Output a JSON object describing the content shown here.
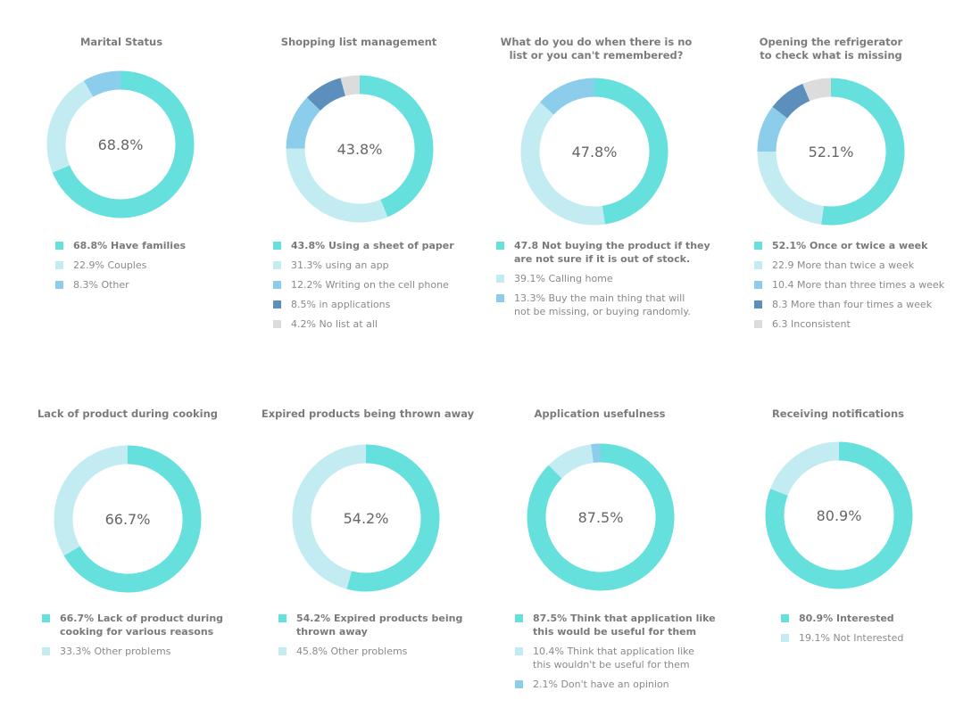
{
  "colors": {
    "turquoise": "#66e0dc",
    "pale_blue": "#c2ecf2",
    "sky_blue": "#8ccdec",
    "steel_blue": "#5d8fbd",
    "light_gray": "#dcdcdc"
  },
  "chart_data": [
    {
      "type": "pie",
      "title": "Marital Status",
      "center_label": "68.8%",
      "slices": [
        {
          "label": "68.8% Have families",
          "value": 68.8,
          "color": "#66e0dc"
        },
        {
          "label": "22.9% Couples",
          "value": 22.9,
          "color": "#c2ecf2"
        },
        {
          "label": "8.3% Other",
          "value": 8.3,
          "color": "#8ccdec"
        }
      ]
    },
    {
      "type": "pie",
      "title": "Shopping list management",
      "center_label": "43.8%",
      "slices": [
        {
          "label": "43.8% Using a sheet of paper",
          "value": 43.8,
          "color": "#66e0dc"
        },
        {
          "label": "31.3% using an app",
          "value": 31.3,
          "color": "#c2ecf2"
        },
        {
          "label": "12.2% Writing on the cell phone",
          "value": 12.2,
          "color": "#8ccdec"
        },
        {
          "label": "8.5% in applications",
          "value": 8.5,
          "color": "#5d8fbd"
        },
        {
          "label": "4.2% No list at all",
          "value": 4.2,
          "color": "#dcdcdc"
        }
      ]
    },
    {
      "type": "pie",
      "title": "What do you do when there is no\nlist or you can't remembered?",
      "center_label": "47.8%",
      "slices": [
        {
          "label": "47.8 Not buying the product if they\nare not sure if it is out of stock.",
          "value": 47.8,
          "color": "#66e0dc"
        },
        {
          "label": "39.1% Calling home",
          "value": 39.1,
          "color": "#c2ecf2"
        },
        {
          "label": "13.3% Buy the main thing that will\nnot be missing, or buying randomly.",
          "value": 13.3,
          "color": "#8ccdec"
        }
      ]
    },
    {
      "type": "pie",
      "title": "Opening the refrigerator\nto check what is missing",
      "center_label": "52.1%",
      "slices": [
        {
          "label": "52.1% Once or twice a week",
          "value": 52.1,
          "color": "#66e0dc"
        },
        {
          "label": "22.9 More than twice a week",
          "value": 22.9,
          "color": "#c2ecf2"
        },
        {
          "label": "10.4 More than three times a week",
          "value": 10.4,
          "color": "#8ccdec"
        },
        {
          "label": "8.3 More than four times a week",
          "value": 8.3,
          "color": "#5d8fbd"
        },
        {
          "label": "6.3 Inconsistent",
          "value": 6.3,
          "color": "#dcdcdc"
        }
      ]
    },
    {
      "type": "pie",
      "title": "Lack of product during cooking",
      "center_label": "66.7%",
      "slices": [
        {
          "label": "66.7% Lack of product during\ncooking for various reasons",
          "value": 66.7,
          "color": "#66e0dc"
        },
        {
          "label": "33.3% Other problems",
          "value": 33.3,
          "color": "#c2ecf2"
        }
      ]
    },
    {
      "type": "pie",
      "title": "Expired products being thrown away",
      "center_label": "54.2%",
      "slices": [
        {
          "label": "54.2% Expired products being\nthrown away",
          "value": 54.2,
          "color": "#66e0dc"
        },
        {
          "label": "45.8% Other problems",
          "value": 45.8,
          "color": "#c2ecf2"
        }
      ]
    },
    {
      "type": "pie",
      "title": "Application usefulness",
      "center_label": "87.5%",
      "slices": [
        {
          "label": "87.5% Think that application like\nthis would be useful for them",
          "value": 87.5,
          "color": "#66e0dc"
        },
        {
          "label": "10.4% Think that application like\nthis wouldn't be useful for them",
          "value": 10.4,
          "color": "#c2ecf2"
        },
        {
          "label": "2.1% Don't have an opinion",
          "value": 2.1,
          "color": "#8ccdec"
        }
      ]
    },
    {
      "type": "pie",
      "title": "Receiving notifications",
      "center_label": "80.9%",
      "slices": [
        {
          "label": "80.9% Interested",
          "value": 80.9,
          "color": "#66e0dc"
        },
        {
          "label": "19.1% Not Interested",
          "value": 19.1,
          "color": "#c2ecf2"
        }
      ]
    }
  ]
}
